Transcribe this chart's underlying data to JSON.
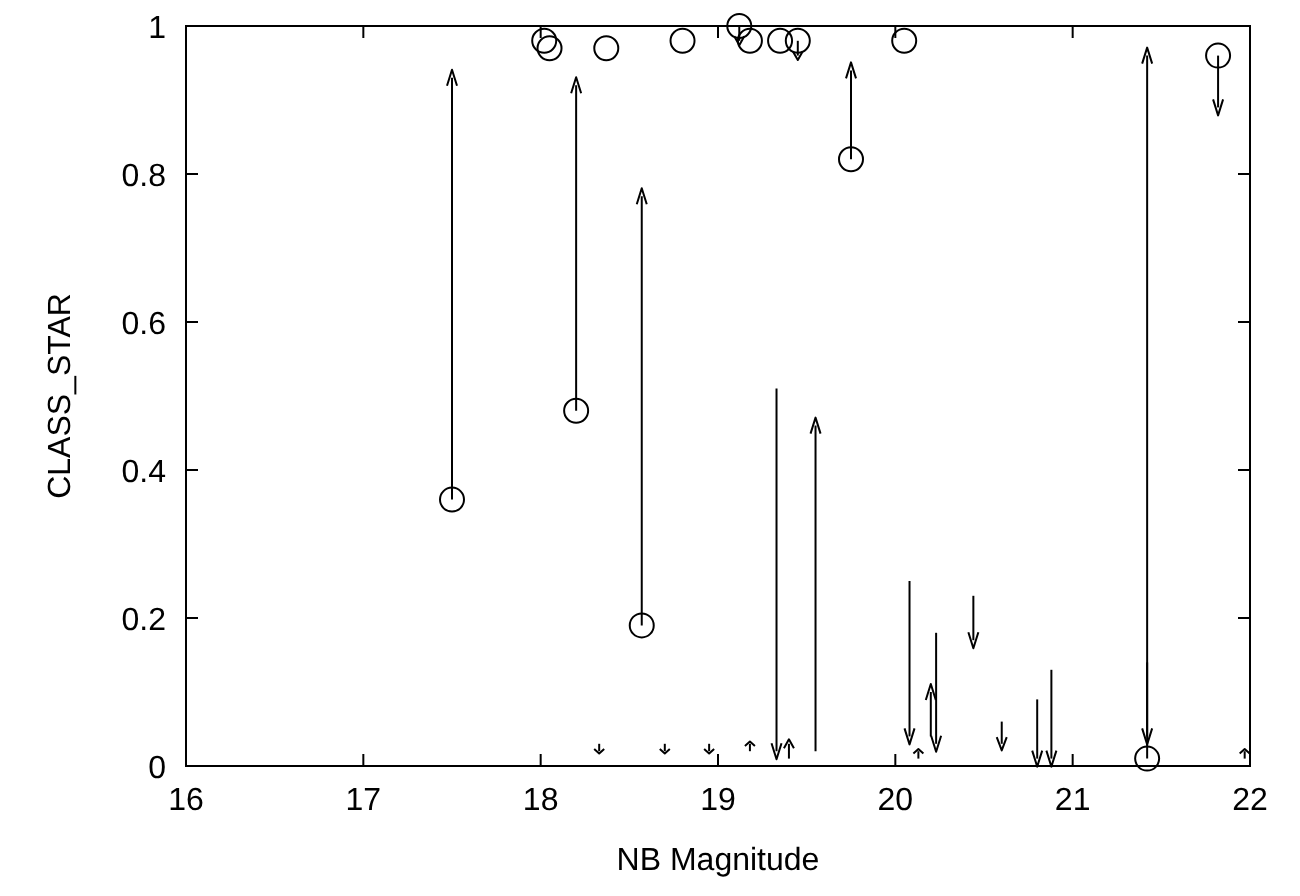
{
  "chart_data": {
    "type": "scatter",
    "xlabel": "NB Magnitude",
    "ylabel": "CLASS_STAR",
    "xlim": [
      16,
      22
    ],
    "ylim": [
      0,
      1
    ],
    "xticks": [
      16,
      17,
      18,
      19,
      20,
      21,
      22
    ],
    "yticks": [
      0,
      0.2,
      0.4,
      0.6,
      0.8,
      1
    ],
    "grid": false,
    "series": [
      {
        "marker": "circle",
        "color": "#000000",
        "x": [
          17.5,
          18.02,
          18.05,
          18.2,
          18.37,
          18.57,
          18.8,
          19.12,
          19.18,
          19.35,
          19.45,
          19.75,
          20.05,
          21.42,
          21.82
        ],
        "values": [
          0.36,
          0.98,
          0.97,
          0.48,
          0.97,
          0.19,
          0.98,
          1.0,
          0.98,
          0.98,
          0.98,
          0.82,
          0.98,
          0.01,
          0.96
        ]
      },
      {
        "color": "#000000",
        "x": [
          17.5,
          18.2,
          18.57,
          19.12,
          19.45,
          19.75,
          19.33,
          19.55,
          20.08,
          20.2,
          20.23,
          20.44,
          20.6,
          20.8,
          20.88,
          21.42,
          21.42,
          21.82,
          18.33,
          18.7,
          18.95,
          19.18,
          19.4,
          20.13,
          21.97
        ],
        "values": [
          0.93,
          0.92,
          0.77,
          0.98,
          0.96,
          0.94,
          0.02,
          0.46,
          0.04,
          0.1,
          0.03,
          0.17,
          0.03,
          0.01,
          0.01,
          0.96,
          0.04,
          0.89,
          0.02,
          0.02,
          0.02,
          0.03,
          0.03,
          0.02,
          0.02
        ],
        "errors": [
          [
            0.36,
            0.93
          ],
          [
            0.48,
            0.92
          ],
          [
            0.19,
            0.77
          ],
          [
            0.98,
            1.0
          ],
          [
            0.96,
            0.98
          ],
          [
            0.82,
            0.94
          ],
          [
            0.02,
            0.51
          ],
          [
            0.02,
            0.46
          ],
          [
            0.04,
            0.25
          ],
          [
            0.04,
            0.1
          ],
          [
            0.03,
            0.18
          ],
          [
            0.17,
            0.23
          ],
          [
            0.03,
            0.06
          ],
          [
            0.01,
            0.09
          ],
          [
            0.01,
            0.13
          ],
          [
            0.01,
            0.96
          ],
          [
            0.04,
            0.14
          ],
          [
            0.89,
            0.96
          ],
          [
            0.02,
            0.03
          ],
          [
            0.02,
            0.03
          ],
          [
            0.02,
            0.03
          ],
          [
            0.02,
            0.03
          ],
          [
            0.01,
            0.03
          ],
          [
            0.01,
            0.02
          ],
          [
            0.01,
            0.02
          ]
        ]
      }
    ]
  }
}
